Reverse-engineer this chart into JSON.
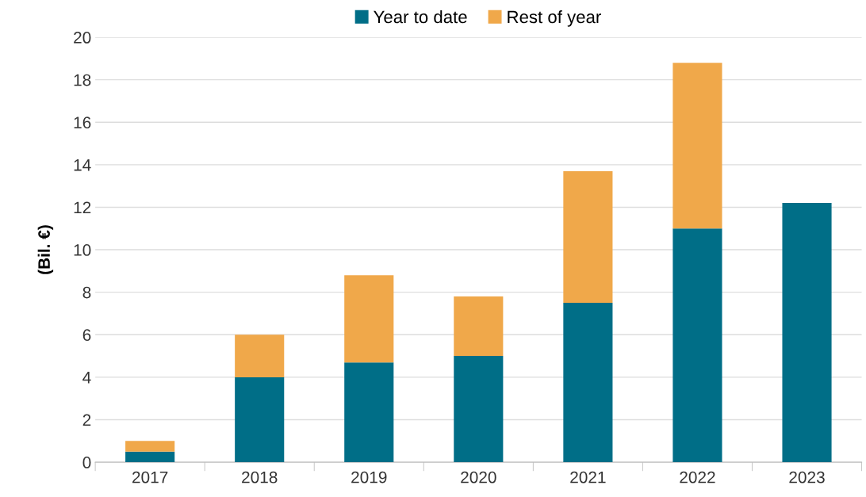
{
  "chart_data": {
    "type": "bar",
    "stacked": true,
    "ylabel": "(Bil. €)",
    "categories": [
      "2017",
      "2018",
      "2019",
      "2020",
      "2021",
      "2022",
      "2023"
    ],
    "series": [
      {
        "name": "Year to date",
        "color": "#006e87",
        "values": [
          0.5,
          4.0,
          4.7,
          5.0,
          7.5,
          11.0,
          12.2
        ]
      },
      {
        "name": "Rest of year",
        "color": "#f0a84a",
        "values": [
          0.5,
          2.0,
          4.1,
          2.8,
          6.2,
          7.8,
          null
        ]
      }
    ],
    "ylim": [
      0,
      20
    ],
    "yticks": [
      0,
      2,
      4,
      6,
      8,
      10,
      12,
      14,
      16,
      18,
      20
    ],
    "grid": "y",
    "legend": "top"
  }
}
